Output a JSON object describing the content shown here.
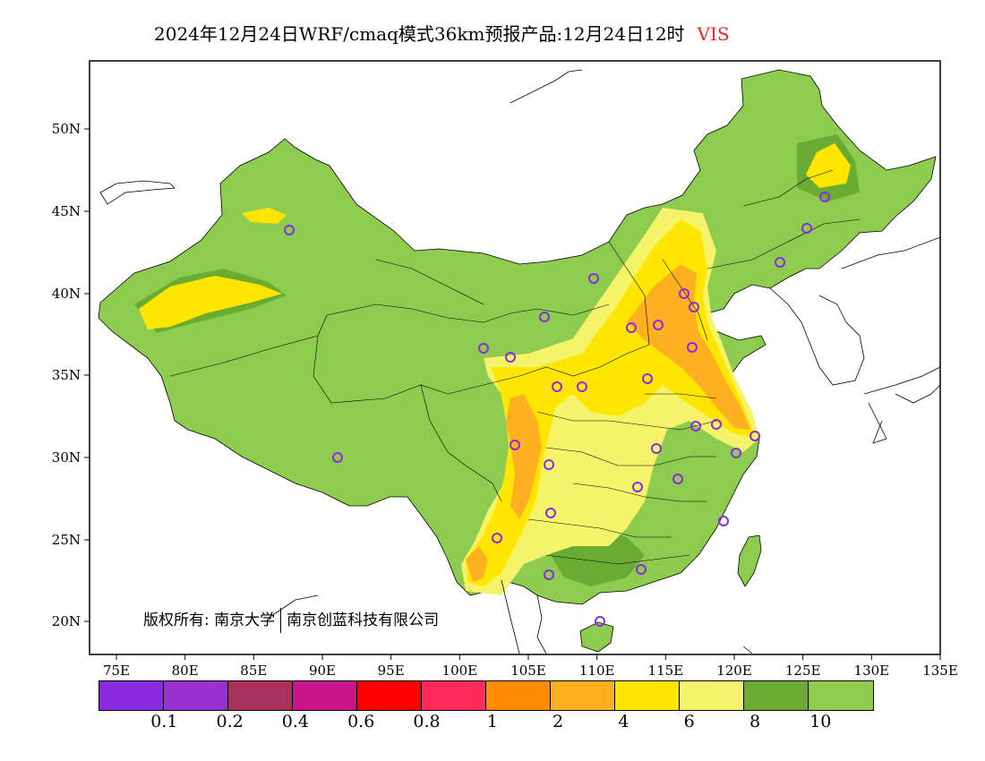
{
  "title": {
    "text": "2024年12月24日WRF/cmaq模式36km预报产品:12月24日12时",
    "variable": "VIS",
    "variable_color": "#e8262a"
  },
  "axes": {
    "x_ticks": [
      "75E",
      "80E",
      "85E",
      "90E",
      "95E",
      "100E",
      "105E",
      "110E",
      "115E",
      "120E",
      "125E",
      "130E",
      "135E"
    ],
    "y_ticks": [
      "50N",
      "45N",
      "40N",
      "35N",
      "30N",
      "25N",
      "20N"
    ]
  },
  "copyright": {
    "prefix": "版权所有: 南京大学",
    "second": "南京创蓝科技有限公司"
  },
  "colorbar": {
    "colors": [
      "#8a2be2",
      "#9b30d0",
      "#a8305a",
      "#c8168a",
      "#ff0000",
      "#ff2a5a",
      "#ff8c00",
      "#ffb020",
      "#ffe600",
      "#f5f36a",
      "#6aab34",
      "#8dcc4e"
    ],
    "labels": [
      "0.1",
      "0.2",
      "0.4",
      "0.6",
      "0.8",
      "1",
      "2",
      "4",
      "6",
      "8",
      "10"
    ]
  },
  "legend_colors": {
    "land_base": "#8dcc4e",
    "low_dark": "#6aab34",
    "yellow_light": "#f5f36a",
    "yellow": "#ffe600",
    "orange_light": "#ffb020",
    "station_marker": "#8a2be2"
  }
}
